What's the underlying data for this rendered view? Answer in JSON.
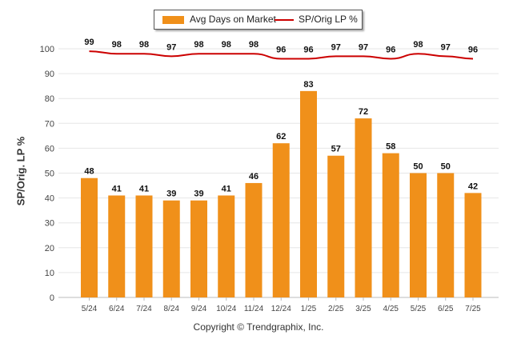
{
  "chart_data": {
    "type": "bar",
    "categories": [
      "5/24",
      "6/24",
      "7/24",
      "8/24",
      "9/24",
      "10/24",
      "11/24",
      "12/24",
      "1/25",
      "2/25",
      "3/25",
      "4/25",
      "5/25",
      "6/25",
      "7/25"
    ],
    "series": [
      {
        "name": "Avg Days on Market",
        "type": "bar",
        "color": "#f0901a",
        "values": [
          48,
          41,
          41,
          39,
          39,
          41,
          46,
          62,
          83,
          57,
          72,
          58,
          50,
          50,
          42
        ]
      },
      {
        "name": "SP/Orig LP %",
        "type": "line",
        "color": "#cc0000",
        "values": [
          99,
          98,
          98,
          97,
          98,
          98,
          98,
          96,
          96,
          97,
          97,
          96,
          98,
          97,
          96
        ]
      }
    ],
    "ylabel": "SP/Orig. LP %",
    "ylim": [
      0,
      100
    ],
    "yticks": [
      0,
      10,
      20,
      30,
      40,
      50,
      60,
      70,
      80,
      90,
      100
    ],
    "grid": true,
    "legend_position": "top-center",
    "footer": "Copyright © Trendgraphix, Inc."
  }
}
